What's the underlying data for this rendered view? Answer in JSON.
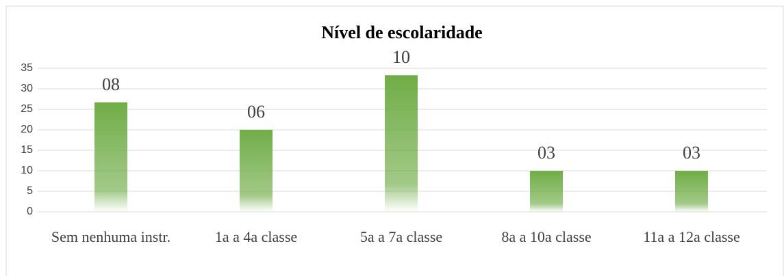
{
  "chart_data": {
    "type": "bar",
    "title": "Nível de escolaridade",
    "categories": [
      "Sem nenhuma instr.",
      "1a a 4a classe",
      "5a a 7a classe",
      "8a a 10a classe",
      "11a a 12a classe"
    ],
    "values": [
      26.7,
      20,
      33.3,
      10,
      10
    ],
    "data_labels": [
      {
        "value": 8,
        "label": "08"
      },
      {
        "value": 6,
        "label": "06"
      },
      {
        "value": 10,
        "label": "10"
      },
      {
        "value": 3,
        "label": "03"
      },
      {
        "value": 3,
        "label": "03"
      }
    ],
    "color": "#70ad47",
    "ylim": [
      0,
      35
    ],
    "yticks": [
      0,
      5,
      10,
      15,
      20,
      25,
      30,
      35
    ],
    "grid": true
  }
}
